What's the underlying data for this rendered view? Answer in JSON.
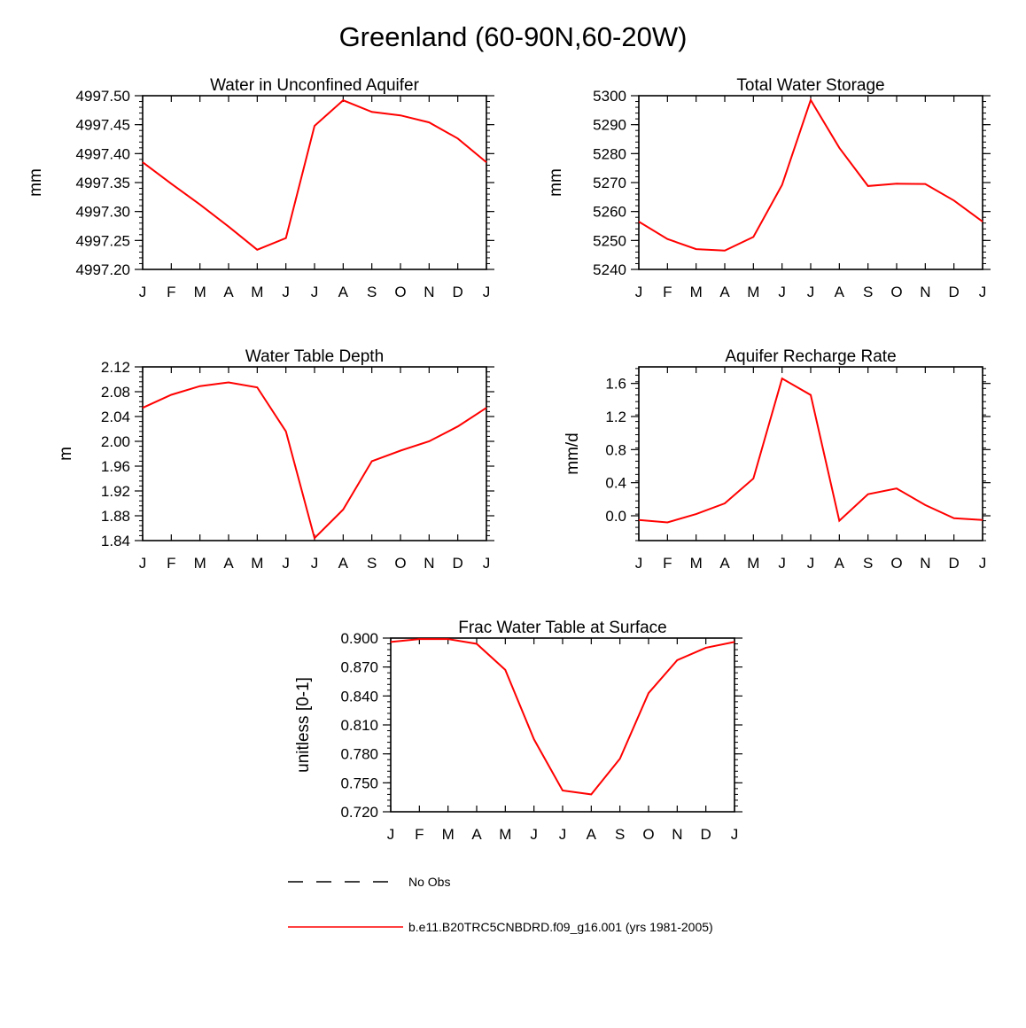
{
  "page": {
    "title": "Greenland (60-90N,60-20W)"
  },
  "chart_data": [
    {
      "type": "line",
      "title": "Water in Unconfined Aquifer",
      "xlabel": "",
      "ylabel": "mm",
      "categories": [
        "J",
        "F",
        "M",
        "A",
        "M",
        "J",
        "J",
        "A",
        "S",
        "O",
        "N",
        "D",
        "J"
      ],
      "ylim": [
        4997.2,
        4997.5
      ],
      "yticks": [
        "4997.20",
        "4997.25",
        "4997.30",
        "4997.35",
        "4997.40",
        "4997.45",
        "4997.50"
      ],
      "series": [
        {
          "name": "b.e11.B20TRC5CNBDRD.f09_g16.001 (yrs 1981-2005)",
          "color": "#ff0000",
          "values": [
            4997.385,
            4997.348,
            4997.312,
            4997.274,
            4997.234,
            4997.254,
            4997.448,
            4997.492,
            4997.472,
            4997.466,
            4997.454,
            4997.426,
            4997.385
          ]
        }
      ]
    },
    {
      "type": "line",
      "title": "Total Water Storage",
      "xlabel": "",
      "ylabel": "mm",
      "categories": [
        "J",
        "F",
        "M",
        "A",
        "M",
        "J",
        "J",
        "A",
        "S",
        "O",
        "N",
        "D",
        "J"
      ],
      "ylim": [
        5240,
        5300
      ],
      "yticks": [
        "5240",
        "5250",
        "5260",
        "5270",
        "5280",
        "5290",
        "5300"
      ],
      "series": [
        {
          "name": "b.e11.B20TRC5CNBDRD.f09_g16.001 (yrs 1981-2005)",
          "color": "#ff0000",
          "values": [
            5256.5,
            5250.5,
            5247.0,
            5246.5,
            5251.2,
            5269.2,
            5298.5,
            5282.0,
            5268.8,
            5269.6,
            5269.5,
            5263.8,
            5256.5
          ]
        }
      ]
    },
    {
      "type": "line",
      "title": "Water Table Depth",
      "xlabel": "",
      "ylabel": "m",
      "categories": [
        "J",
        "F",
        "M",
        "A",
        "M",
        "J",
        "J",
        "A",
        "S",
        "O",
        "N",
        "D",
        "J"
      ],
      "ylim": [
        1.84,
        2.12
      ],
      "yticks": [
        "1.84",
        "1.88",
        "1.92",
        "1.96",
        "2.00",
        "2.04",
        "2.08",
        "2.12"
      ],
      "series": [
        {
          "name": "b.e11.B20TRC5CNBDRD.f09_g16.001 (yrs 1981-2005)",
          "color": "#ff0000",
          "values": [
            2.054,
            2.075,
            2.089,
            2.095,
            2.087,
            2.016,
            1.844,
            1.89,
            1.968,
            1.985,
            2.0,
            2.024,
            2.054
          ]
        }
      ]
    },
    {
      "type": "line",
      "title": "Aquifer Recharge Rate",
      "xlabel": "",
      "ylabel": "mm/d",
      "categories": [
        "J",
        "F",
        "M",
        "A",
        "M",
        "J",
        "J",
        "A",
        "S",
        "O",
        "N",
        "D",
        "J"
      ],
      "ylim": [
        -0.3,
        1.8
      ],
      "yticks": [
        "0.0",
        "0.4",
        "0.8",
        "1.2",
        "1.6"
      ],
      "series": [
        {
          "name": "b.e11.B20TRC5CNBDRD.f09_g16.001 (yrs 1981-2005)",
          "color": "#ff0000",
          "values": [
            -0.05,
            -0.08,
            0.02,
            0.15,
            0.45,
            1.66,
            1.46,
            -0.06,
            0.26,
            0.33,
            0.13,
            -0.03,
            -0.05
          ]
        }
      ]
    },
    {
      "type": "line",
      "title": "Frac Water Table at Surface",
      "xlabel": "",
      "ylabel": "unitless [0-1]",
      "categories": [
        "J",
        "F",
        "M",
        "A",
        "M",
        "J",
        "J",
        "A",
        "S",
        "O",
        "N",
        "D",
        "J"
      ],
      "ylim": [
        0.72,
        0.9
      ],
      "yticks": [
        "0.720",
        "0.750",
        "0.780",
        "0.810",
        "0.840",
        "0.870",
        "0.900"
      ],
      "series": [
        {
          "name": "b.e11.B20TRC5CNBDRD.f09_g16.001 (yrs 1981-2005)",
          "color": "#ff0000",
          "values": [
            0.896,
            0.899,
            0.899,
            0.894,
            0.867,
            0.795,
            0.742,
            0.738,
            0.775,
            0.843,
            0.877,
            0.89,
            0.896
          ]
        }
      ]
    }
  ],
  "legend": {
    "items": [
      {
        "label": "No Obs",
        "style": "dashed",
        "color": "#000000"
      },
      {
        "label": "b.e11.B20TRC5CNBDRD.f09_g16.001 (yrs 1981-2005)",
        "style": "solid",
        "color": "#ff0000"
      }
    ]
  }
}
